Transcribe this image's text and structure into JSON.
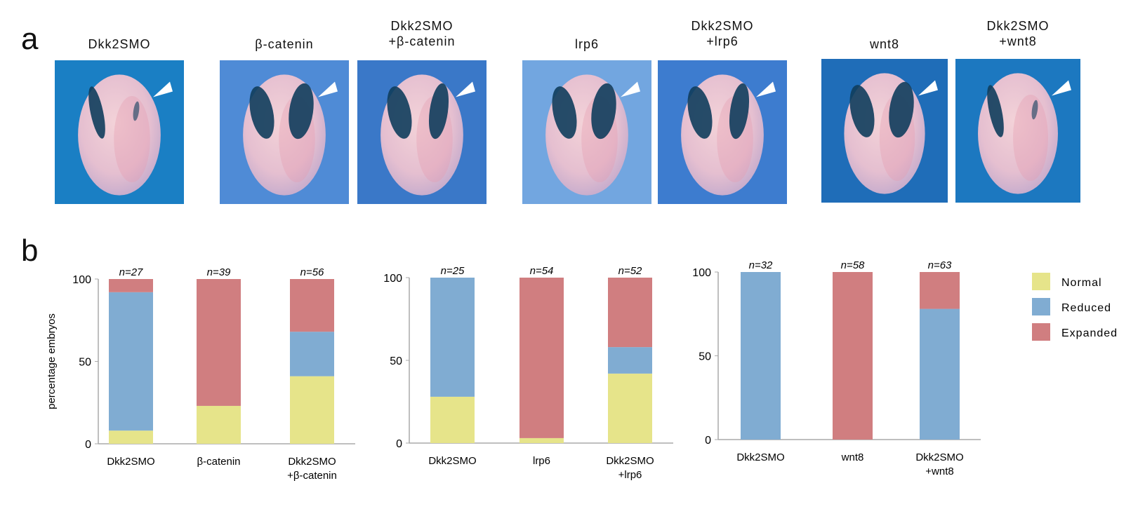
{
  "panel_a": {
    "letter": "a",
    "photos": [
      {
        "label_line1": "Dkk2SMO",
        "label_line2": "",
        "bg": "#1a7fc4",
        "stain": "reduced"
      },
      {
        "label_line1": "β-catenin",
        "label_line2": "",
        "bg": "#4f8bd6",
        "stain": "expanded"
      },
      {
        "label_line1": "Dkk2SMO",
        "label_line2": "+β-catenin",
        "bg": "#3a78c8",
        "stain": "partial"
      },
      {
        "label_line1": "lrp6",
        "label_line2": "",
        "bg": "#72a6e0",
        "stain": "expanded"
      },
      {
        "label_line1": "Dkk2SMO",
        "label_line2": "+lrp6",
        "bg": "#3d7ccf",
        "stain": "partial"
      },
      {
        "label_line1": "wnt8",
        "label_line2": "",
        "bg": "#1f6db8",
        "stain": "expanded"
      },
      {
        "label_line1": "Dkk2SMO",
        "label_line2": "+wnt8",
        "bg": "#1c78c0",
        "stain": "reduced"
      }
    ]
  },
  "panel_b": {
    "letter": "b"
  },
  "colors": {
    "Normal": "#e6e48a",
    "Reduced": "#80acd2",
    "Expanded": "#d07e80"
  },
  "chart_data": [
    {
      "type": "bar",
      "stacked": true,
      "ylabel": "percentage embryos",
      "ylim": [
        0,
        100
      ],
      "yticks": [
        0,
        50,
        100
      ],
      "categories": [
        [
          "Dkk2SMO"
        ],
        [
          "β-catenin"
        ],
        [
          "Dkk2SMO",
          "+β-catenin"
        ]
      ],
      "n_labels": [
        "n=27",
        "n=39",
        "n=56"
      ],
      "series": [
        {
          "name": "Normal",
          "values": [
            8,
            23,
            41
          ]
        },
        {
          "name": "Reduced",
          "values": [
            84,
            0,
            27
          ]
        },
        {
          "name": "Expanded",
          "values": [
            8,
            77,
            32
          ]
        }
      ]
    },
    {
      "type": "bar",
      "stacked": true,
      "ylabel": "",
      "ylim": [
        0,
        100
      ],
      "yticks": [
        0,
        50,
        100
      ],
      "categories": [
        [
          "Dkk2SMO"
        ],
        [
          "lrp6"
        ],
        [
          "Dkk2SMO",
          "+lrp6"
        ]
      ],
      "n_labels": [
        "n=25",
        "n=54",
        "n=52"
      ],
      "series": [
        {
          "name": "Normal",
          "values": [
            28,
            3,
            42
          ]
        },
        {
          "name": "Reduced",
          "values": [
            72,
            0,
            16
          ]
        },
        {
          "name": "Expanded",
          "values": [
            0,
            97,
            42
          ]
        }
      ]
    },
    {
      "type": "bar",
      "stacked": true,
      "ylabel": "",
      "ylim": [
        0,
        100
      ],
      "yticks": [
        0,
        50,
        100
      ],
      "categories": [
        [
          "Dkk2SMO"
        ],
        [
          "wnt8"
        ],
        [
          "Dkk2SMO",
          "+wnt8"
        ]
      ],
      "n_labels": [
        "n=32",
        "n=58",
        "n=63"
      ],
      "series": [
        {
          "name": "Normal",
          "values": [
            0,
            0,
            0
          ]
        },
        {
          "name": "Reduced",
          "values": [
            100,
            0,
            78
          ]
        },
        {
          "name": "Expanded",
          "values": [
            0,
            100,
            22
          ]
        }
      ]
    }
  ],
  "legend": {
    "placement": "right",
    "entries": [
      "Normal",
      "Reduced",
      "Expanded"
    ]
  }
}
